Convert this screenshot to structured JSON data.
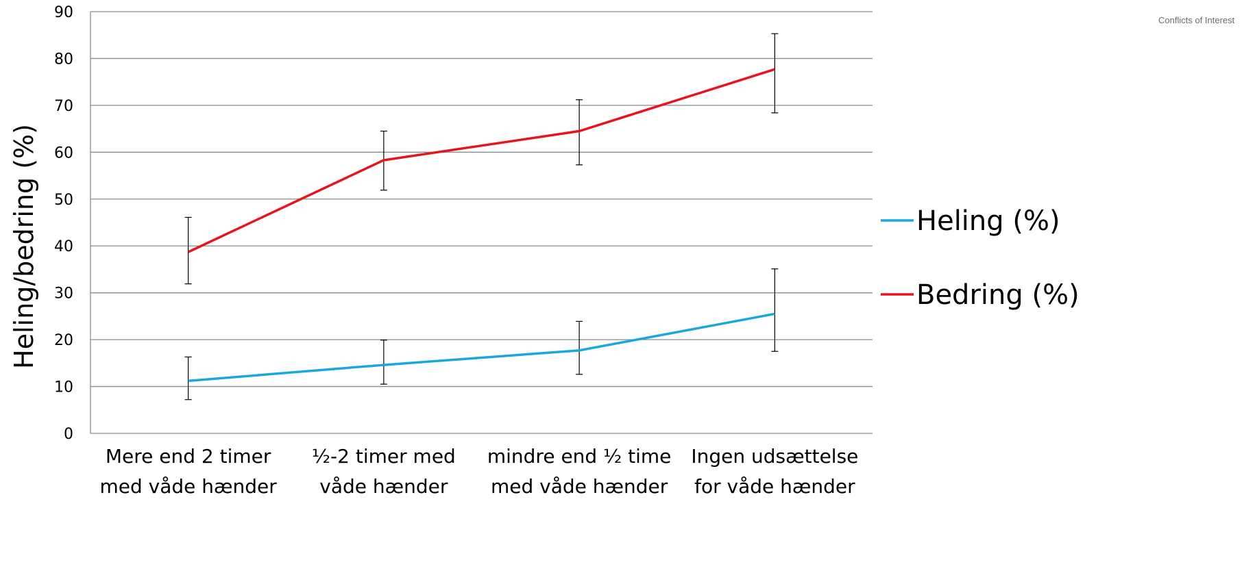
{
  "header": {
    "corner_note": "Conflicts of Interest"
  },
  "chart_data": {
    "type": "line",
    "categories": [
      [
        "Mere end 2 timer",
        "med våde hænder"
      ],
      [
        "½-2 timer med",
        "våde hænder"
      ],
      [
        "mindre end ½ time",
        "med våde hænder"
      ],
      [
        "Ingen udsættelse",
        "for våde hænder"
      ]
    ],
    "ylabel": "Heling/bedring (%)",
    "xlabel": "",
    "title": "",
    "ylim": [
      0,
      90
    ],
    "yticks": [
      0,
      10,
      20,
      30,
      40,
      50,
      60,
      70,
      80,
      90
    ],
    "grid": true,
    "legend_position": "right",
    "series": [
      {
        "name": "Heling (%)",
        "color": "#1aa7e0",
        "values": [
          11.2,
          14.6,
          17.7,
          25.5
        ],
        "error_low": [
          7.2,
          10.5,
          12.6,
          17.5
        ],
        "error_high": [
          16.3,
          19.9,
          23.9,
          35.1
        ]
      },
      {
        "name": "Bedring (%)",
        "color": "#e8141c",
        "values": [
          38.7,
          58.3,
          64.5,
          77.7
        ],
        "error_low": [
          31.9,
          51.9,
          57.3,
          68.4
        ],
        "error_high": [
          46.1,
          64.5,
          71.2,
          85.3
        ]
      }
    ]
  }
}
